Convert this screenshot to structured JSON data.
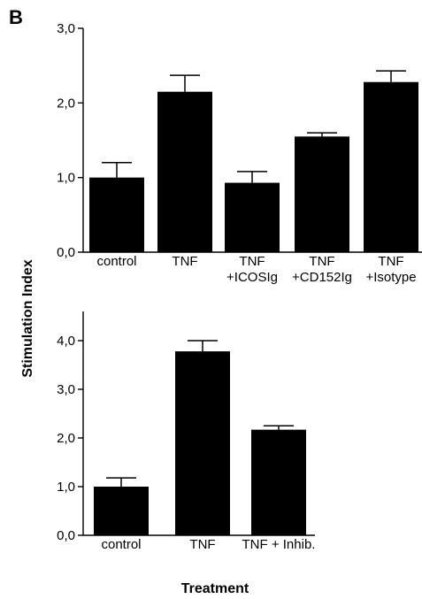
{
  "panel_letter": "B",
  "ylabel": "Stimulation Index",
  "xlabel": "Treatment",
  "chart_data": [
    {
      "type": "bar",
      "categories": [
        [
          "control"
        ],
        [
          "TNF"
        ],
        [
          "TNF",
          "+ICOSIg"
        ],
        [
          "TNF",
          "+CD152Ig"
        ],
        [
          "TNF",
          "+Isotype"
        ]
      ],
      "values": [
        1.0,
        2.15,
        0.93,
        1.55,
        2.28
      ],
      "errors": [
        0.2,
        0.22,
        0.15,
        0.05,
        0.15
      ],
      "ylim": [
        0,
        3
      ],
      "yticks": [
        0,
        1,
        2,
        3
      ],
      "ytick_labels": [
        "0,0",
        "1,0",
        "2,0",
        "3,0"
      ],
      "bar_color": "#000000"
    },
    {
      "type": "bar",
      "categories": [
        [
          "control"
        ],
        [
          "TNF"
        ],
        [
          "TNF + Inhib."
        ]
      ],
      "values": [
        1.0,
        3.78,
        2.17
      ],
      "errors": [
        0.18,
        0.22,
        0.08
      ],
      "ylim": [
        0,
        4.6
      ],
      "yticks": [
        0,
        1,
        2,
        3,
        4
      ],
      "ytick_labels": [
        "0,0",
        "1,0",
        "2,0",
        "3,0",
        "4,0"
      ],
      "bar_color": "#000000"
    }
  ]
}
